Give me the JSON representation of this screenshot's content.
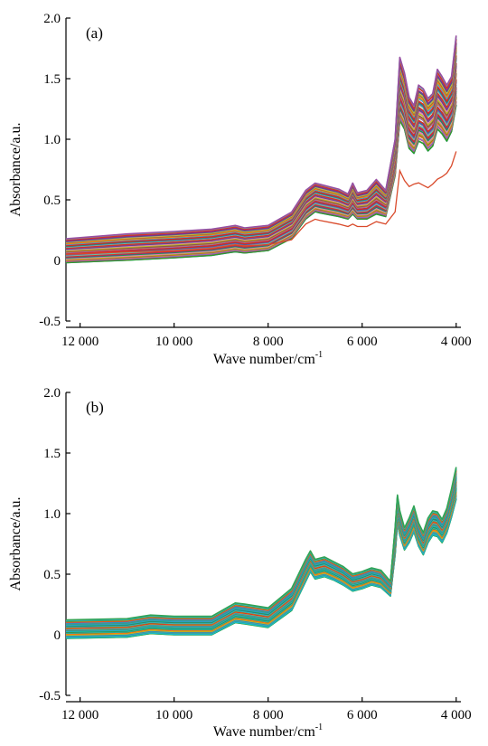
{
  "chart_data": [
    {
      "type": "line",
      "panel_label": "(a)",
      "xlabel": "Wave number/cm",
      "xlabel_superscript": "-1",
      "ylabel": "Absorbance/a.u.",
      "xlim": [
        12300,
        3900
      ],
      "ylim": [
        -0.5,
        2.0
      ],
      "x_reversed": true,
      "xticks": [
        12000,
        10000,
        8000,
        6000,
        4000
      ],
      "xtick_labels": [
        "12 000",
        "10 000",
        "8 000",
        "6 000",
        "4 000"
      ],
      "yticks": [
        -0.5,
        0,
        0.5,
        1.0,
        1.5,
        2.0
      ],
      "ytick_labels": [
        "-0.5",
        "0",
        "0.5",
        "1.0",
        "1.5",
        "2.0"
      ],
      "grid": false,
      "x": [
        12300,
        11000,
        10000,
        9200,
        8700,
        8500,
        8000,
        7500,
        7200,
        7000,
        6900,
        6500,
        6300,
        6200,
        6100,
        5900,
        5700,
        5500,
        5300,
        5200,
        5100,
        5000,
        4900,
        4800,
        4700,
        4600,
        4500,
        4400,
        4300,
        4200,
        4100,
        4000
      ],
      "envelope": {
        "upper": [
          0.18,
          0.22,
          0.24,
          0.26,
          0.29,
          0.27,
          0.29,
          0.4,
          0.58,
          0.64,
          0.63,
          0.59,
          0.55,
          0.64,
          0.56,
          0.58,
          0.67,
          0.58,
          1.0,
          1.68,
          1.55,
          1.35,
          1.28,
          1.45,
          1.42,
          1.34,
          1.38,
          1.58,
          1.52,
          1.45,
          1.52,
          1.86
        ],
        "lower": [
          -0.02,
          0.0,
          0.02,
          0.04,
          0.07,
          0.06,
          0.08,
          0.18,
          0.34,
          0.4,
          0.39,
          0.36,
          0.34,
          0.38,
          0.34,
          0.34,
          0.38,
          0.36,
          0.7,
          1.15,
          1.08,
          0.92,
          0.88,
          0.98,
          0.96,
          0.9,
          0.94,
          1.08,
          1.04,
          0.98,
          1.06,
          1.28
        ]
      },
      "series": [
        {
          "values": [
            0.05,
            0.07,
            0.08,
            0.1,
            0.13,
            0.12,
            0.13,
            0.17,
            0.3,
            0.34,
            0.33,
            0.3,
            0.28,
            0.3,
            0.28,
            0.28,
            0.32,
            0.3,
            0.4,
            0.74,
            0.66,
            0.61,
            0.63,
            0.64,
            0.62,
            0.6,
            0.63,
            0.67,
            0.69,
            0.72,
            0.78,
            0.9
          ]
        }
      ],
      "palette": [
        "#1f77b4",
        "#2ca02c",
        "#d62728",
        "#9467bd",
        "#17becf",
        "#ff7f0e",
        "#8c564b",
        "#bcbd22",
        "#e377c2",
        "#1a9850",
        "#7b3294",
        "#4575b4",
        "#d73027",
        "#66c2a5",
        "#984ea3"
      ],
      "outlier_color": "#d94a2b"
    },
    {
      "type": "line",
      "panel_label": "(b)",
      "xlabel": "Wave number/cm",
      "xlabel_superscript": "-1",
      "ylabel": "Absorbance/a.u.",
      "xlim": [
        12300,
        3900
      ],
      "ylim": [
        -0.5,
        2.0
      ],
      "x_reversed": true,
      "xticks": [
        12000,
        10000,
        8000,
        6000,
        4000
      ],
      "xtick_labels": [
        "12 000",
        "10 000",
        "8 000",
        "6 000",
        "4 000"
      ],
      "yticks": [
        -0.5,
        0,
        0.5,
        1.0,
        1.5,
        2.0
      ],
      "ytick_labels": [
        "-0.5",
        "0",
        "0.5",
        "1.0",
        "1.5",
        "2.0"
      ],
      "grid": false,
      "x": [
        12300,
        11000,
        10500,
        10000,
        9200,
        8700,
        8500,
        8000,
        7500,
        7200,
        7100,
        7000,
        6800,
        6600,
        6400,
        6200,
        6000,
        5800,
        5600,
        5400,
        5300,
        5250,
        5200,
        5100,
        5000,
        4900,
        4800,
        4700,
        4600,
        4500,
        4400,
        4300,
        4200,
        4100,
        4000
      ],
      "envelope": {
        "upper": [
          0.12,
          0.13,
          0.16,
          0.15,
          0.15,
          0.26,
          0.25,
          0.22,
          0.38,
          0.62,
          0.69,
          0.62,
          0.64,
          0.6,
          0.56,
          0.5,
          0.52,
          0.55,
          0.53,
          0.44,
          0.88,
          1.15,
          1.02,
          0.88,
          0.96,
          1.06,
          0.92,
          0.84,
          0.96,
          1.02,
          1.01,
          0.95,
          1.04,
          1.2,
          1.38
        ],
        "lower": [
          -0.03,
          -0.02,
          0.01,
          0.0,
          0.0,
          0.1,
          0.09,
          0.06,
          0.2,
          0.44,
          0.52,
          0.46,
          0.48,
          0.45,
          0.41,
          0.36,
          0.38,
          0.41,
          0.39,
          0.32,
          0.66,
          0.92,
          0.82,
          0.7,
          0.76,
          0.85,
          0.73,
          0.66,
          0.76,
          0.82,
          0.81,
          0.76,
          0.84,
          0.97,
          1.12
        ]
      },
      "series": [],
      "palette": [
        "#1f77b4",
        "#2ca02c",
        "#17becf",
        "#3a8fc1",
        "#20a39e",
        "#4e9a4e",
        "#5ab4ac",
        "#2b8cbe",
        "#9467bd",
        "#bcbd22",
        "#d62728",
        "#ff7f0e",
        "#1a9850",
        "#41b6c4",
        "#31a354"
      ],
      "outlier_color": ""
    }
  ]
}
